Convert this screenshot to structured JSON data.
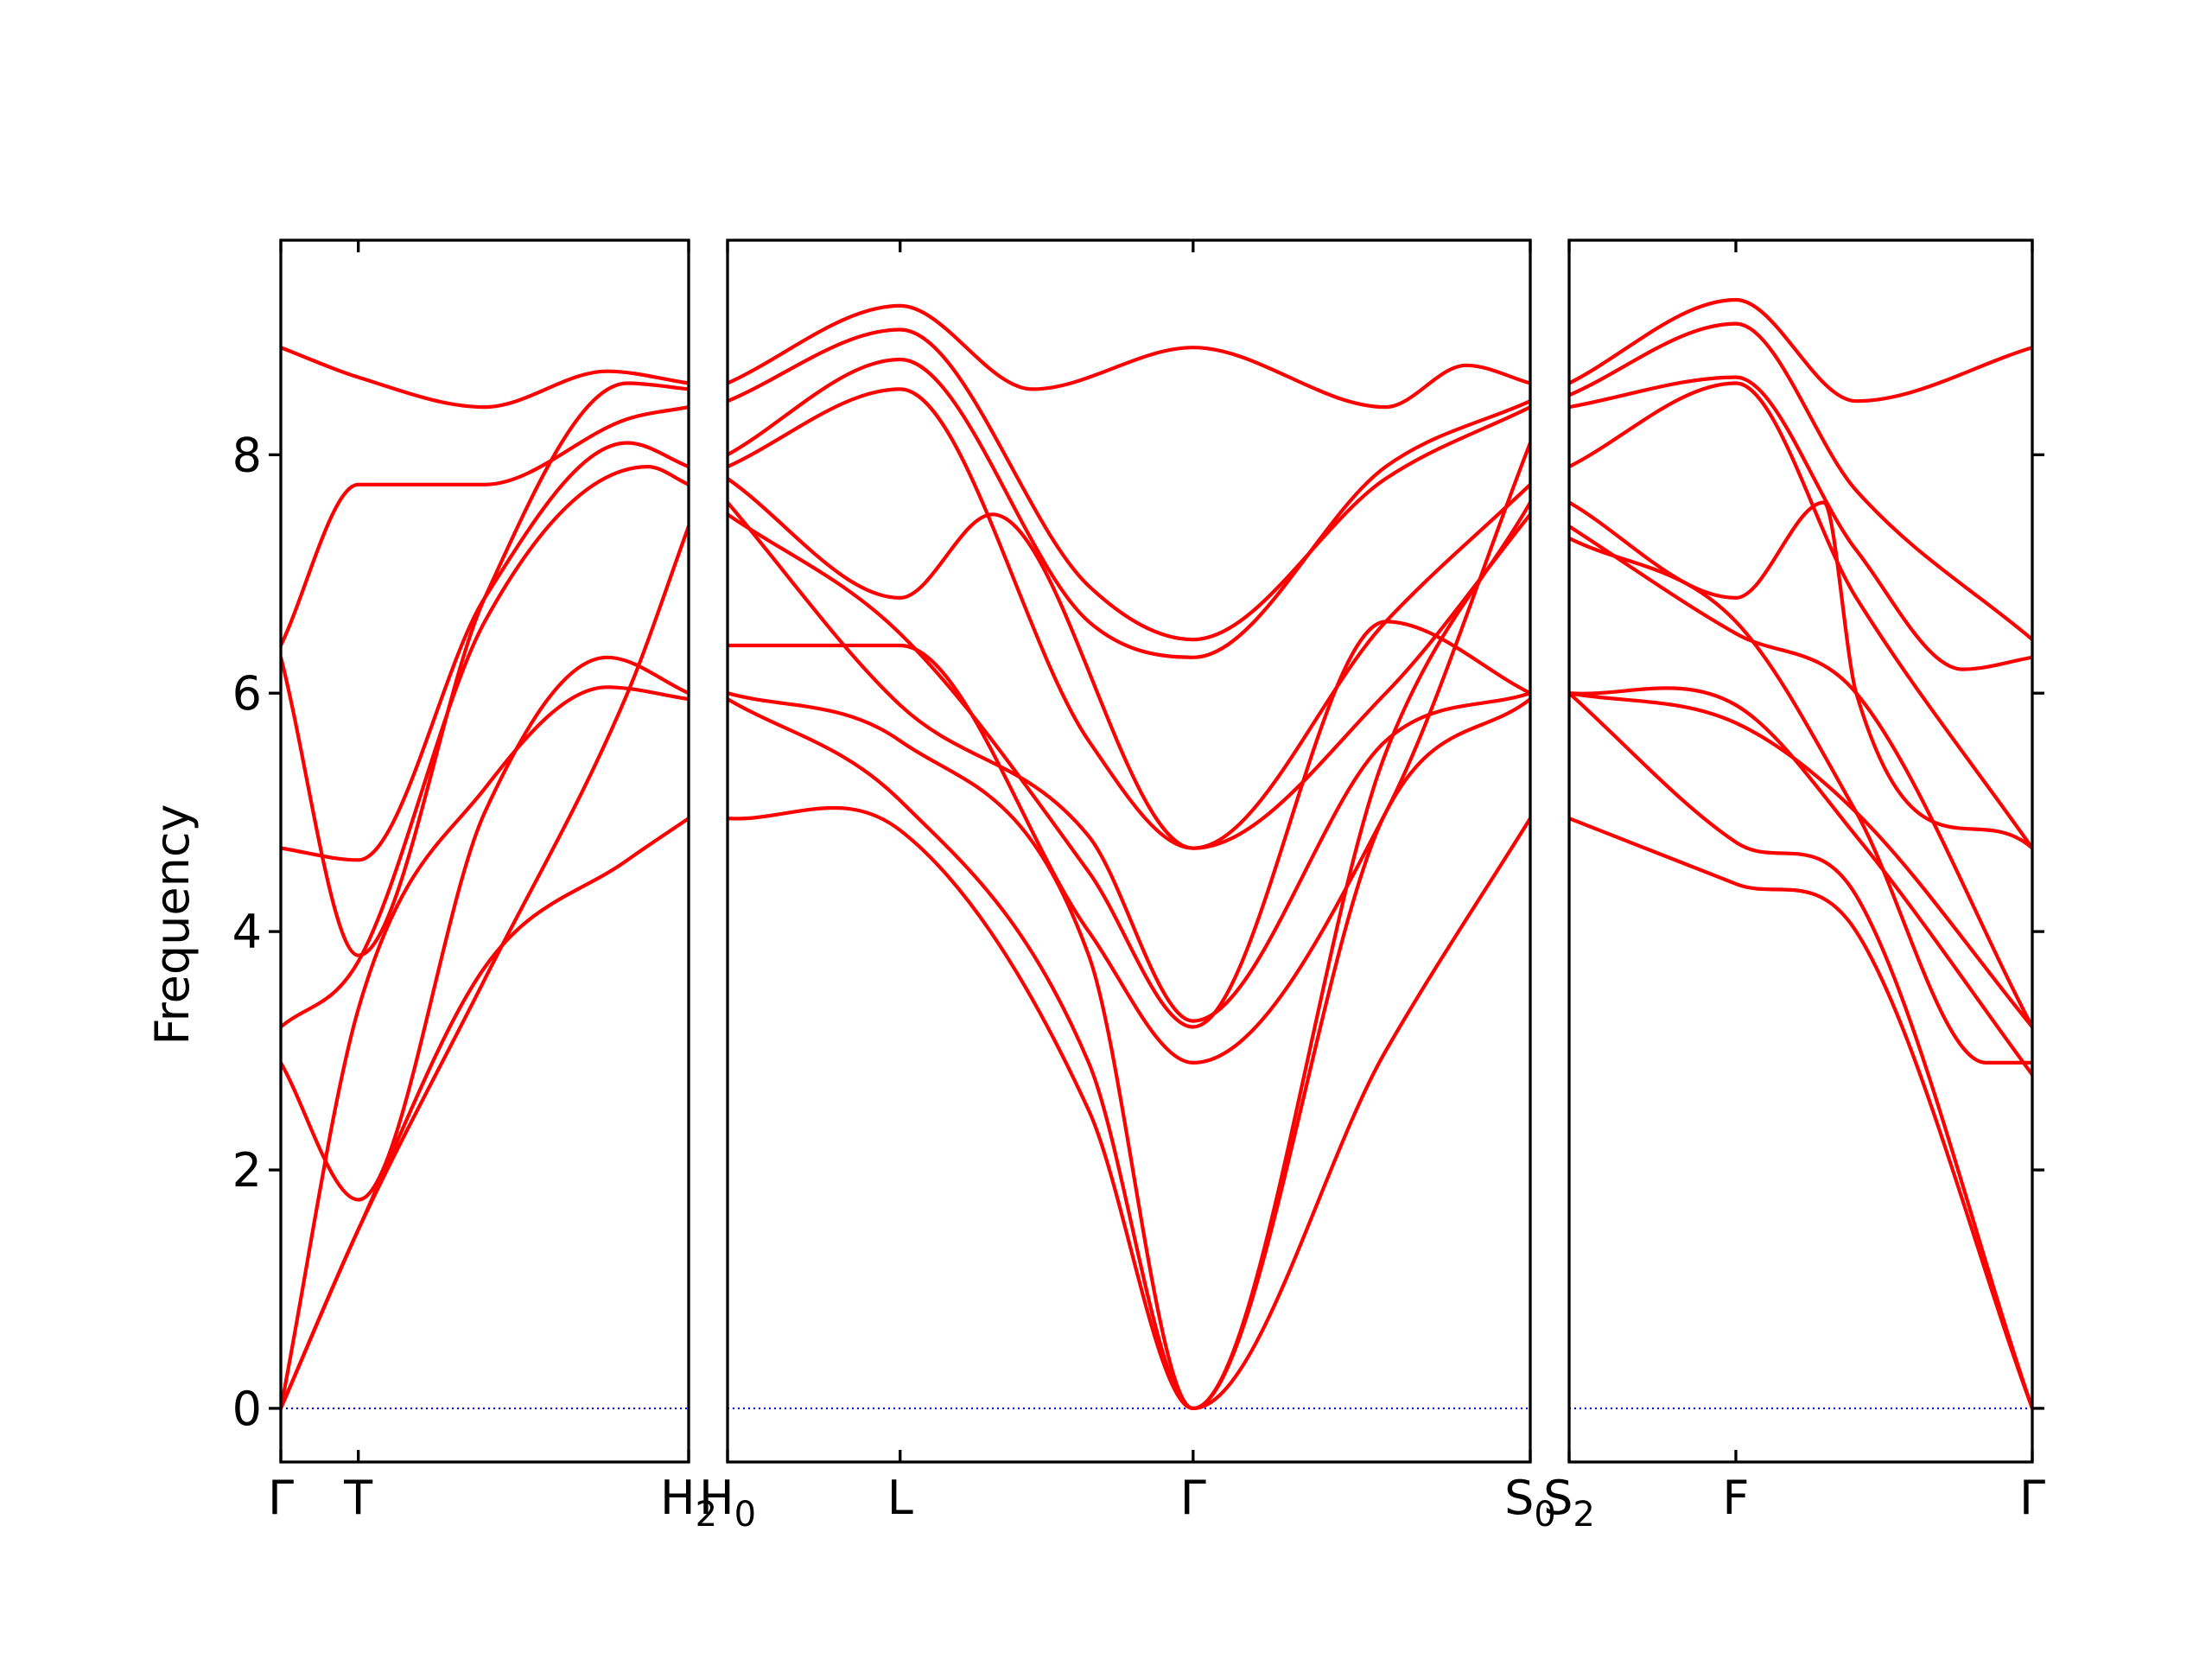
{
  "chart_data": {
    "type": "line",
    "ylabel": "Frequency",
    "xlabel": "",
    "ylim": [
      -0.45,
      9.8
    ],
    "yticks": [
      0,
      2,
      4,
      6,
      8
    ],
    "grid": false,
    "line_color": "#ff0000",
    "zero_line_color": "#0000ff",
    "panels": [
      {
        "x_range": [
          0,
          1
        ],
        "xticks": [
          {
            "x": 0,
            "label": "Γ",
            "sub": ""
          },
          {
            "x": 0.19,
            "label": "T",
            "sub": ""
          },
          {
            "x": 1,
            "label": "H",
            "sub": "2"
          }
        ],
        "series": [
          {
            "x": [
              0,
              0.19,
              0.5,
              0.8,
              1
            ],
            "y": [
              8.9,
              8.65,
              8.4,
              8.7,
              8.6
            ]
          },
          {
            "x": [
              0,
              0.19,
              0.5,
              0.85,
              1
            ],
            "y": [
              6.4,
              7.75,
              7.75,
              8.3,
              8.4
            ]
          },
          {
            "x": [
              0,
              0.19,
              0.5,
              0.85,
              1
            ],
            "y": [
              6.3,
              3.8,
              6.8,
              8.6,
              8.55
            ]
          },
          {
            "x": [
              0,
              0.19,
              0.5,
              0.85,
              1
            ],
            "y": [
              4.7,
              4.6,
              6.8,
              8.1,
              7.9
            ]
          },
          {
            "x": [
              0,
              0.19,
              0.5,
              0.9,
              1
            ],
            "y": [
              3.2,
              3.75,
              6.6,
              7.9,
              7.75
            ]
          },
          {
            "x": [
              0,
              0.19,
              0.5,
              0.8,
              1
            ],
            "y": [
              2.9,
              1.75,
              5.0,
              6.3,
              6.0
            ]
          },
          {
            "x": [
              0,
              0.19,
              0.5,
              0.8,
              1
            ],
            "y": [
              0.0,
              3.35,
              5.2,
              6.05,
              5.95
            ]
          },
          {
            "x": [
              0,
              0.19,
              0.5,
              0.85,
              1
            ],
            "y": [
              0.0,
              1.5,
              3.6,
              6.0,
              7.4
            ]
          },
          {
            "x": [
              0,
              0.19,
              0.5,
              0.85,
              1
            ],
            "y": [
              0.0,
              1.5,
              3.7,
              4.6,
              4.95
            ]
          }
        ]
      },
      {
        "x_range": [
          0,
          1
        ],
        "xticks": [
          {
            "x": 0,
            "label": "H",
            "sub": "0"
          },
          {
            "x": 0.215,
            "label": "L",
            "sub": ""
          },
          {
            "x": 0.58,
            "label": "Γ",
            "sub": ""
          },
          {
            "x": 1,
            "label": "S",
            "sub": "0"
          }
        ],
        "series": [
          {
            "x": [
              0,
              0.215,
              0.38,
              0.58,
              0.82,
              0.92,
              1
            ],
            "y": [
              8.6,
              9.25,
              8.55,
              8.9,
              8.4,
              8.75,
              8.6
            ]
          },
          {
            "x": [
              0,
              0.215,
              0.45,
              0.58,
              0.82,
              1
            ],
            "y": [
              8.45,
              9.05,
              6.9,
              6.45,
              7.8,
              8.4
            ]
          },
          {
            "x": [
              0,
              0.215,
              0.45,
              0.58,
              0.82,
              1
            ],
            "y": [
              8.0,
              8.8,
              6.6,
              6.3,
              7.9,
              8.45
            ]
          },
          {
            "x": [
              0,
              0.215,
              0.45,
              0.58,
              0.82,
              1
            ],
            "y": [
              7.9,
              8.55,
              5.6,
              4.7,
              6.6,
              7.75
            ]
          },
          {
            "x": [
              0,
              0.215,
              0.33,
              0.58,
              0.82,
              1
            ],
            "y": [
              7.8,
              6.8,
              7.5,
              4.7,
              6.0,
              7.5
            ]
          },
          {
            "x": [
              0,
              0.215,
              0.45,
              0.58,
              0.82,
              1
            ],
            "y": [
              7.5,
              6.5,
              4.5,
              3.2,
              6.6,
              6.0
            ]
          },
          {
            "x": [
              0,
              0.215,
              0.45,
              0.58,
              0.82,
              1
            ],
            "y": [
              7.6,
              5.9,
              4.8,
              3.25,
              5.6,
              6.0
            ]
          },
          {
            "x": [
              0,
              0.215,
              0.45,
              0.58,
              0.82,
              1
            ],
            "y": [
              6.4,
              6.4,
              4.0,
              2.9,
              5.0,
              8.1
            ]
          },
          {
            "x": [
              0,
              0.215,
              0.45,
              0.58,
              0.82,
              1
            ],
            "y": [
              6.0,
              5.6,
              3.8,
              0.0,
              5.5,
              7.6
            ]
          },
          {
            "x": [
              0,
              0.215,
              0.45,
              0.58,
              0.82,
              1
            ],
            "y": [
              5.95,
              5.1,
              2.9,
              0.0,
              5.0,
              5.95
            ]
          },
          {
            "x": [
              0,
              0.215,
              0.45,
              0.58,
              0.82,
              1
            ],
            "y": [
              4.95,
              4.85,
              2.5,
              0.0,
              3.0,
              4.95
            ]
          }
        ]
      },
      {
        "x_range": [
          0,
          1
        ],
        "xticks": [
          {
            "x": 0,
            "label": "S",
            "sub": "2"
          },
          {
            "x": 0.36,
            "label": "F",
            "sub": ""
          },
          {
            "x": 1,
            "label": "Γ",
            "sub": ""
          }
        ],
        "series": [
          {
            "x": [
              0,
              0.36,
              0.62,
              1
            ],
            "y": [
              8.6,
              9.3,
              8.45,
              8.9
            ]
          },
          {
            "x": [
              0,
              0.36,
              0.62,
              1
            ],
            "y": [
              8.5,
              9.1,
              7.7,
              6.45
            ]
          },
          {
            "x": [
              0,
              0.36,
              0.62,
              0.85,
              1
            ],
            "y": [
              8.4,
              8.65,
              7.2,
              6.2,
              6.3
            ]
          },
          {
            "x": [
              0,
              0.36,
              0.62,
              1
            ],
            "y": [
              7.9,
              8.6,
              6.8,
              4.7
            ]
          },
          {
            "x": [
              0,
              0.36,
              0.55,
              0.62,
              1
            ],
            "y": [
              7.6,
              6.8,
              7.6,
              6.0,
              4.7
            ]
          },
          {
            "x": [
              0,
              0.36,
              0.62,
              1
            ],
            "y": [
              7.4,
              6.5,
              6.0,
              3.2
            ]
          },
          {
            "x": [
              0,
              0.36,
              0.62,
              0.9,
              1
            ],
            "y": [
              7.3,
              6.6,
              5.0,
              2.9,
              2.9
            ]
          },
          {
            "x": [
              0,
              0.36,
              0.62,
              1
            ],
            "y": [
              6.0,
              5.75,
              5.0,
              3.2
            ]
          },
          {
            "x": [
              0,
              0.36,
              0.62,
              1
            ],
            "y": [
              6.0,
              5.9,
              4.8,
              2.8
            ]
          },
          {
            "x": [
              0,
              0.36,
              0.62,
              1
            ],
            "y": [
              6.0,
              4.75,
              4.3,
              0.0
            ]
          },
          {
            "x": [
              0,
              0.36,
              0.62,
              1
            ],
            "y": [
              4.95,
              4.4,
              4.0,
              0.0
            ]
          }
        ]
      }
    ]
  }
}
